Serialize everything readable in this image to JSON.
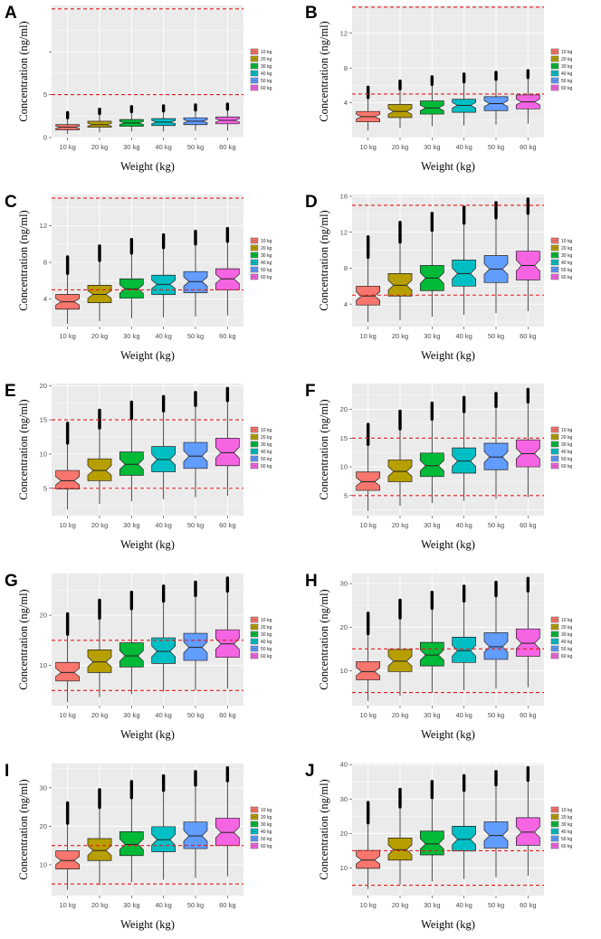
{
  "figure": {
    "xlabel": "Weight (kg)",
    "ylabel": "Concentration (ng/ml)",
    "categories": [
      "10 kg",
      "20 kg",
      "30 kg",
      "40 kg",
      "50 kg",
      "60 kg"
    ],
    "legend_labels": [
      "10 kg",
      "20 kg",
      "30 kg",
      "40 kg",
      "50 kg",
      "60 kg"
    ],
    "colors": [
      "#F8766D",
      "#B79F00",
      "#00BA38",
      "#00BFC4",
      "#619CFF",
      "#F564E3"
    ],
    "reference_line_color": "#E41A1C",
    "panel_background": "#EBEBEB"
  },
  "chart_data": [
    {
      "panel": "A",
      "type": "boxplot",
      "ylim": [
        0,
        15.4
      ],
      "yticks": [
        0,
        5,
        10
      ],
      "ytick_labels": [
        "0",
        "5",
        ""
      ],
      "reference_lines": [
        5,
        15
      ],
      "boxes": [
        {
          "category": "10 kg",
          "whisker_low": 0.4,
          "q1": 0.9,
          "median": 1.2,
          "q3": 1.5,
          "whisker_high": 2.3,
          "outlier_max": 2.9
        },
        {
          "category": "20 kg",
          "whisker_low": 0.6,
          "q1": 1.2,
          "median": 1.5,
          "q3": 1.9,
          "whisker_high": 2.8,
          "outlier_max": 3.3
        },
        {
          "category": "30 kg",
          "whisker_low": 0.7,
          "q1": 1.3,
          "median": 1.7,
          "q3": 2.1,
          "whisker_high": 3.0,
          "outlier_max": 3.6
        },
        {
          "category": "40 kg",
          "whisker_low": 0.7,
          "q1": 1.4,
          "median": 1.8,
          "q3": 2.2,
          "whisker_high": 3.1,
          "outlier_max": 3.7
        },
        {
          "category": "50 kg",
          "whisker_low": 0.8,
          "q1": 1.5,
          "median": 1.9,
          "q3": 2.3,
          "whisker_high": 3.2,
          "outlier_max": 3.8
        },
        {
          "category": "60 kg",
          "whisker_low": 0.8,
          "q1": 1.6,
          "median": 2.0,
          "q3": 2.4,
          "whisker_high": 3.3,
          "outlier_max": 3.9
        }
      ]
    },
    {
      "panel": "B",
      "type": "boxplot",
      "ylim": [
        0,
        15.2
      ],
      "yticks": [
        4,
        8,
        12
      ],
      "ytick_labels": [
        "4",
        "8",
        "12"
      ],
      "reference_lines": [
        5,
        15
      ],
      "boxes": [
        {
          "category": "10 kg",
          "whisker_low": 0.8,
          "q1": 1.8,
          "median": 2.4,
          "q3": 3.0,
          "whisker_high": 4.6,
          "outlier_max": 5.8
        },
        {
          "category": "20 kg",
          "whisker_low": 1.1,
          "q1": 2.3,
          "median": 3.0,
          "q3": 3.8,
          "whisker_high": 5.6,
          "outlier_max": 6.5
        },
        {
          "category": "30 kg",
          "whisker_low": 1.3,
          "q1": 2.7,
          "median": 3.4,
          "q3": 4.2,
          "whisker_high": 6.1,
          "outlier_max": 7.0
        },
        {
          "category": "40 kg",
          "whisker_low": 1.4,
          "q1": 2.9,
          "median": 3.7,
          "q3": 4.4,
          "whisker_high": 6.4,
          "outlier_max": 7.3
        },
        {
          "category": "50 kg",
          "whisker_low": 1.5,
          "q1": 3.1,
          "median": 3.9,
          "q3": 4.7,
          "whisker_high": 6.7,
          "outlier_max": 7.5
        },
        {
          "category": "60 kg",
          "whisker_low": 1.6,
          "q1": 3.3,
          "median": 4.1,
          "q3": 4.9,
          "whisker_high": 6.9,
          "outlier_max": 7.7
        }
      ]
    },
    {
      "panel": "C",
      "type": "boxplot",
      "ylim": [
        1,
        15.4
      ],
      "yticks": [
        4,
        8,
        12
      ],
      "ytick_labels": [
        "4",
        "8",
        "12"
      ],
      "reference_lines": [
        5,
        15
      ],
      "boxes": [
        {
          "category": "10 kg",
          "whisker_low": 1.3,
          "q1": 2.9,
          "median": 3.7,
          "q3": 4.5,
          "whisker_high": 6.8,
          "outlier_max": 8.6
        },
        {
          "category": "20 kg",
          "whisker_low": 1.6,
          "q1": 3.6,
          "median": 4.5,
          "q3": 5.5,
          "whisker_high": 8.2,
          "outlier_max": 9.8
        },
        {
          "category": "30 kg",
          "whisker_low": 1.9,
          "q1": 4.1,
          "median": 5.1,
          "q3": 6.2,
          "whisker_high": 9.0,
          "outlier_max": 10.5
        },
        {
          "category": "40 kg",
          "whisker_low": 2.0,
          "q1": 4.5,
          "median": 5.6,
          "q3": 6.6,
          "whisker_high": 9.6,
          "outlier_max": 11.0
        },
        {
          "category": "50 kg",
          "whisker_low": 2.1,
          "q1": 4.7,
          "median": 5.9,
          "q3": 7.0,
          "whisker_high": 10.0,
          "outlier_max": 11.4
        },
        {
          "category": "60 kg",
          "whisker_low": 2.2,
          "q1": 5.0,
          "median": 6.2,
          "q3": 7.3,
          "whisker_high": 10.3,
          "outlier_max": 11.7
        }
      ]
    },
    {
      "panel": "D",
      "type": "boxplot",
      "ylim": [
        1.5,
        16.2
      ],
      "yticks": [
        4,
        8,
        12,
        16
      ],
      "ytick_labels": [
        "4",
        "8",
        "12",
        "16"
      ],
      "reference_lines": [
        5,
        15
      ],
      "boxes": [
        {
          "category": "10 kg",
          "whisker_low": 2.0,
          "q1": 3.9,
          "median": 4.9,
          "q3": 6.0,
          "whisker_high": 9.2,
          "outlier_max": 11.5
        },
        {
          "category": "20 kg",
          "whisker_low": 2.2,
          "q1": 4.9,
          "median": 6.1,
          "q3": 7.4,
          "whisker_high": 10.9,
          "outlier_max": 13.1
        },
        {
          "category": "30 kg",
          "whisker_low": 2.6,
          "q1": 5.5,
          "median": 6.9,
          "q3": 8.3,
          "whisker_high": 12.2,
          "outlier_max": 14.1
        },
        {
          "category": "40 kg",
          "whisker_low": 2.8,
          "q1": 6.0,
          "median": 7.4,
          "q3": 8.9,
          "whisker_high": 13.0,
          "outlier_max": 14.8
        },
        {
          "category": "50 kg",
          "whisker_low": 3.0,
          "q1": 6.4,
          "median": 7.9,
          "q3": 9.4,
          "whisker_high": 13.6,
          "outlier_max": 15.3
        },
        {
          "category": "60 kg",
          "whisker_low": 3.2,
          "q1": 6.7,
          "median": 8.3,
          "q3": 9.9,
          "whisker_high": 14.1,
          "outlier_max": 15.7
        }
      ]
    },
    {
      "panel": "E",
      "type": "boxplot",
      "ylim": [
        1,
        20.3
      ],
      "yticks": [
        5,
        10,
        15,
        20
      ],
      "ytick_labels": [
        "5",
        "10",
        "15",
        "20"
      ],
      "reference_lines": [
        5,
        15
      ],
      "boxes": [
        {
          "category": "10 kg",
          "whisker_low": 1.9,
          "q1": 4.9,
          "median": 6.1,
          "q3": 7.6,
          "whisker_high": 11.6,
          "outlier_max": 14.5
        },
        {
          "category": "20 kg",
          "whisker_low": 2.7,
          "q1": 6.1,
          "median": 7.6,
          "q3": 9.3,
          "whisker_high": 13.8,
          "outlier_max": 16.4
        },
        {
          "category": "30 kg",
          "whisker_low": 3.1,
          "q1": 6.9,
          "median": 8.5,
          "q3": 10.3,
          "whisker_high": 15.2,
          "outlier_max": 17.6
        },
        {
          "category": "40 kg",
          "whisker_low": 3.4,
          "q1": 7.4,
          "median": 9.2,
          "q3": 11.1,
          "whisker_high": 16.3,
          "outlier_max": 18.4
        },
        {
          "category": "50 kg",
          "whisker_low": 3.7,
          "q1": 7.9,
          "median": 9.7,
          "q3": 11.7,
          "whisker_high": 17.1,
          "outlier_max": 19.0
        },
        {
          "category": "60 kg",
          "whisker_low": 3.9,
          "q1": 8.3,
          "median": 10.2,
          "q3": 12.3,
          "whisker_high": 17.8,
          "outlier_max": 19.6
        }
      ]
    },
    {
      "panel": "F",
      "type": "boxplot",
      "ylim": [
        1.5,
        24.5
      ],
      "yticks": [
        5,
        10,
        15,
        20
      ],
      "ytick_labels": [
        "5",
        "10",
        "15",
        "20"
      ],
      "reference_lines": [
        5,
        15
      ],
      "boxes": [
        {
          "category": "10 kg",
          "whisker_low": 2.3,
          "q1": 5.9,
          "median": 7.4,
          "q3": 9.1,
          "whisker_high": 13.9,
          "outlier_max": 17.4
        },
        {
          "category": "20 kg",
          "whisker_low": 3.2,
          "q1": 7.4,
          "median": 9.2,
          "q3": 11.2,
          "whisker_high": 16.6,
          "outlier_max": 19.7
        },
        {
          "category": "30 kg",
          "whisker_low": 3.7,
          "q1": 8.3,
          "median": 10.2,
          "q3": 12.4,
          "whisker_high": 18.3,
          "outlier_max": 21.1
        },
        {
          "category": "40 kg",
          "whisker_low": 4.1,
          "q1": 8.9,
          "median": 11.0,
          "q3": 13.3,
          "whisker_high": 19.6,
          "outlier_max": 22.1
        },
        {
          "category": "50 kg",
          "whisker_low": 4.4,
          "q1": 9.5,
          "median": 11.7,
          "q3": 14.1,
          "whisker_high": 20.5,
          "outlier_max": 22.8
        },
        {
          "category": "60 kg",
          "whisker_low": 4.7,
          "q1": 10.0,
          "median": 12.3,
          "q3": 14.7,
          "whisker_high": 21.3,
          "outlier_max": 23.5
        }
      ]
    },
    {
      "panel": "G",
      "type": "boxplot",
      "ylim": [
        2,
        28.3
      ],
      "yticks": [
        10,
        20
      ],
      "ytick_labels": [
        "10",
        "20"
      ],
      "reference_lines": [
        5,
        15
      ],
      "boxes": [
        {
          "category": "10 kg",
          "whisker_low": 2.7,
          "q1": 6.9,
          "median": 8.6,
          "q3": 10.6,
          "whisker_high": 16.2,
          "outlier_max": 20.3
        },
        {
          "category": "20 kg",
          "whisker_low": 3.7,
          "q1": 8.6,
          "median": 10.7,
          "q3": 13.1,
          "whisker_high": 19.4,
          "outlier_max": 23.0
        },
        {
          "category": "30 kg",
          "whisker_low": 4.3,
          "q1": 9.7,
          "median": 11.9,
          "q3": 14.5,
          "whisker_high": 21.3,
          "outlier_max": 24.6
        },
        {
          "category": "40 kg",
          "whisker_low": 4.8,
          "q1": 10.4,
          "median": 12.8,
          "q3": 15.5,
          "whisker_high": 22.8,
          "outlier_max": 25.8
        },
        {
          "category": "50 kg",
          "whisker_low": 5.1,
          "q1": 11.0,
          "median": 13.6,
          "q3": 16.4,
          "whisker_high": 23.9,
          "outlier_max": 26.6
        },
        {
          "category": "60 kg",
          "whisker_low": 5.4,
          "q1": 11.6,
          "median": 14.3,
          "q3": 17.1,
          "whisker_high": 24.8,
          "outlier_max": 27.4
        }
      ]
    },
    {
      "panel": "H",
      "type": "boxplot",
      "ylim": [
        2,
        32.3
      ],
      "yticks": [
        10,
        20,
        30
      ],
      "ytick_labels": [
        "10",
        "20",
        "30"
      ],
      "reference_lines": [
        5,
        15
      ],
      "boxes": [
        {
          "category": "10 kg",
          "whisker_low": 3.1,
          "q1": 7.9,
          "median": 9.8,
          "q3": 12.1,
          "whisker_high": 18.5,
          "outlier_max": 23.2
        },
        {
          "category": "20 kg",
          "whisker_low": 4.2,
          "q1": 9.8,
          "median": 12.2,
          "q3": 14.9,
          "whisker_high": 22.1,
          "outlier_max": 26.2
        },
        {
          "category": "30 kg",
          "whisker_low": 4.9,
          "q1": 11.1,
          "median": 13.6,
          "q3": 16.5,
          "whisker_high": 24.3,
          "outlier_max": 28.0
        },
        {
          "category": "40 kg",
          "whisker_low": 5.5,
          "q1": 11.9,
          "median": 14.6,
          "q3": 17.7,
          "whisker_high": 26.0,
          "outlier_max": 29.4
        },
        {
          "category": "50 kg",
          "whisker_low": 5.9,
          "q1": 12.6,
          "median": 15.5,
          "q3": 18.7,
          "whisker_high": 27.2,
          "outlier_max": 30.3
        },
        {
          "category": "60 kg",
          "whisker_low": 6.2,
          "q1": 13.3,
          "median": 16.3,
          "q3": 19.6,
          "whisker_high": 28.3,
          "outlier_max": 31.2
        }
      ]
    },
    {
      "panel": "I",
      "type": "boxplot",
      "ylim": [
        2,
        36.3
      ],
      "yticks": [
        10,
        20,
        30
      ],
      "ytick_labels": [
        "10",
        "20",
        "30"
      ],
      "reference_lines": [
        5,
        15
      ],
      "boxes": [
        {
          "category": "10 kg",
          "whisker_low": 3.5,
          "q1": 8.9,
          "median": 11.1,
          "q3": 13.6,
          "whisker_high": 20.8,
          "outlier_max": 26.1
        },
        {
          "category": "20 kg",
          "whisker_low": 4.7,
          "q1": 11.1,
          "median": 13.7,
          "q3": 16.8,
          "whisker_high": 24.9,
          "outlier_max": 29.5
        },
        {
          "category": "30 kg",
          "whisker_low": 5.5,
          "q1": 12.4,
          "median": 15.3,
          "q3": 18.6,
          "whisker_high": 27.4,
          "outlier_max": 31.6
        },
        {
          "category": "40 kg",
          "whisker_low": 6.1,
          "q1": 13.4,
          "median": 16.5,
          "q3": 19.9,
          "whisker_high": 29.3,
          "outlier_max": 33.1
        },
        {
          "category": "50 kg",
          "whisker_low": 6.6,
          "q1": 14.2,
          "median": 17.5,
          "q3": 21.1,
          "whisker_high": 30.7,
          "outlier_max": 34.2
        },
        {
          "category": "60 kg",
          "whisker_low": 7.0,
          "q1": 15.0,
          "median": 18.4,
          "q3": 22.1,
          "whisker_high": 31.8,
          "outlier_max": 35.2
        }
      ]
    },
    {
      "panel": "J",
      "type": "boxplot",
      "ylim": [
        2,
        40.3
      ],
      "yticks": [
        10,
        20,
        30,
        40
      ],
      "ytick_labels": [
        "10",
        "20",
        "30",
        "40"
      ],
      "reference_lines": [
        5,
        15
      ],
      "boxes": [
        {
          "category": "10 kg",
          "whisker_low": 3.9,
          "q1": 9.9,
          "median": 12.3,
          "q3": 15.1,
          "whisker_high": 23.1,
          "outlier_max": 29.0
        },
        {
          "category": "20 kg",
          "whisker_low": 5.2,
          "q1": 12.3,
          "median": 15.3,
          "q3": 18.7,
          "whisker_high": 27.7,
          "outlier_max": 32.8
        },
        {
          "category": "30 kg",
          "whisker_low": 6.1,
          "q1": 13.8,
          "median": 17.0,
          "q3": 20.7,
          "whisker_high": 30.4,
          "outlier_max": 35.1
        },
        {
          "category": "40 kg",
          "whisker_low": 6.8,
          "q1": 14.9,
          "median": 18.3,
          "q3": 22.1,
          "whisker_high": 32.5,
          "outlier_max": 36.8
        },
        {
          "category": "50 kg",
          "whisker_low": 7.3,
          "q1": 15.8,
          "median": 19.4,
          "q3": 23.4,
          "whisker_high": 34.1,
          "outlier_max": 38.0
        },
        {
          "category": "60 kg",
          "whisker_low": 7.8,
          "q1": 16.6,
          "median": 20.4,
          "q3": 24.6,
          "whisker_high": 35.4,
          "outlier_max": 39.1
        }
      ]
    }
  ]
}
